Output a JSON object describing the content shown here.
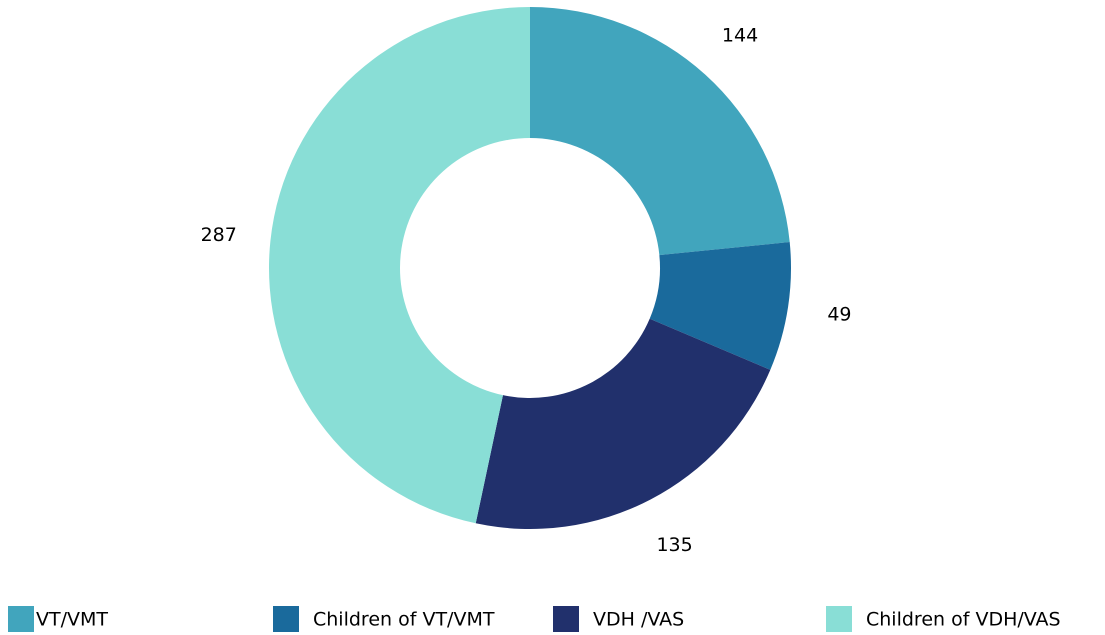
{
  "chart_data": {
    "type": "donut",
    "categories": [
      "VT/VMT",
      "Children of VT/VMT",
      "VDH /VAS",
      "Children of VDH/VAS"
    ],
    "values": [
      144,
      49,
      135,
      287
    ],
    "colors": [
      "#41a5bd",
      "#1a6a9c",
      "#21306c",
      "#89ded6"
    ],
    "legend": "bottom"
  }
}
